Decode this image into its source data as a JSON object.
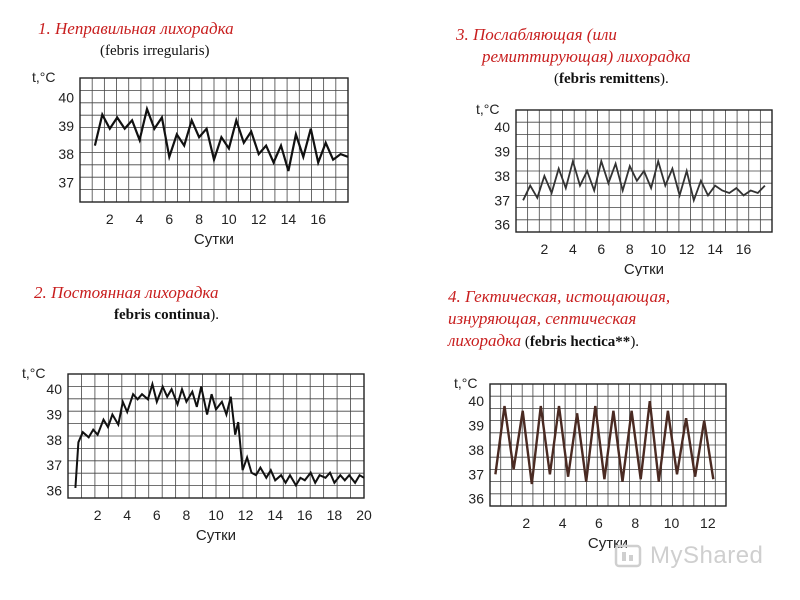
{
  "captions": {
    "p1": {
      "title": "1.  Неправильная  лихорадка",
      "latin": "(febris irregularis)"
    },
    "p2": {
      "title": "2. Постоянная лихорадка",
      "latin": "febris continua",
      "latin_suffix": ")."
    },
    "p3": {
      "title_line1": "3. Послабляющая (или",
      "title_line2": "ремиттирующая) лихорадка",
      "latin_prefix": "(",
      "latin": "febris remittens",
      "latin_suffix": ")."
    },
    "p4": {
      "title_line1": "4. Гектическая, истощающая,",
      "title_line2": "изнуряющая, септическая",
      "title_line3": "лихорадка",
      "latin_prefix": " (",
      "latin": "febris hectica**",
      "latin_suffix": ")."
    }
  },
  "watermark": {
    "text": "MyShared"
  },
  "colors": {
    "title": "#c81e1e",
    "curve_dark": "#111111",
    "curve_brown": "#4a2a22",
    "grid": "#444444"
  },
  "chart_data": [
    {
      "id": "p1",
      "type": "line",
      "ylabel": "t,°C",
      "xlabel": "Сутки",
      "ylim": [
        36.3,
        40.7
      ],
      "xlim": [
        0,
        18
      ],
      "y_ticks": [
        "40",
        "39",
        "38",
        "37"
      ],
      "x_ticks": [
        "2",
        "4",
        "6",
        "8",
        "10",
        "12",
        "14",
        "16"
      ],
      "series": [
        {
          "x": [
            1,
            1.5,
            2,
            2.5,
            3,
            3.5,
            4,
            4.5,
            5,
            5.5,
            6,
            6.5,
            7,
            7.5,
            8,
            8.5,
            9,
            9.5,
            10,
            10.5,
            11,
            11.5,
            12,
            12.5,
            13,
            13.5,
            14,
            14.5,
            15,
            15.5,
            16,
            16.5,
            17,
            17.5,
            18
          ],
          "values": [
            38.3,
            39.4,
            38.9,
            39.3,
            38.9,
            39.2,
            38.5,
            39.6,
            38.9,
            39.3,
            37.9,
            38.7,
            38.3,
            39.2,
            38.6,
            38.9,
            37.8,
            38.6,
            38.2,
            39.2,
            38.4,
            38.8,
            38.0,
            38.3,
            37.7,
            38.3,
            37.4,
            38.7,
            37.9,
            38.9,
            37.7,
            38.4,
            37.8,
            38.0,
            37.9
          ]
        }
      ]
    },
    {
      "id": "p2",
      "type": "line",
      "ylabel": "t,°C",
      "xlabel": "Сутки",
      "ylim": [
        35.7,
        40.6
      ],
      "xlim": [
        0,
        20
      ],
      "y_ticks": [
        "40",
        "39",
        "38",
        "37",
        "36"
      ],
      "x_ticks": [
        "2",
        "4",
        "6",
        "8",
        "10",
        "12",
        "14",
        "16",
        "18",
        "20"
      ],
      "series": [
        {
          "x": [
            0.5,
            0.7,
            1,
            1.4,
            1.7,
            2,
            2.4,
            2.7,
            3,
            3.4,
            3.7,
            4,
            4.4,
            4.7,
            5,
            5.4,
            5.7,
            6,
            6.4,
            6.7,
            7,
            7.4,
            7.7,
            8,
            8.4,
            8.7,
            9,
            9.4,
            9.7,
            10,
            10.4,
            10.7,
            11,
            11.3,
            11.5,
            11.8,
            12.1,
            12.4,
            12.7,
            13,
            13.4,
            13.7,
            14,
            14.4,
            14.7,
            15,
            15.4,
            15.7,
            16,
            16.4,
            16.7,
            17,
            17.4,
            17.7,
            18,
            18.4,
            18.7,
            19,
            19.4,
            19.7,
            20
          ],
          "values": [
            36.1,
            37.9,
            38.3,
            38.1,
            38.4,
            38.2,
            38.8,
            38.5,
            39.0,
            38.6,
            39.5,
            39.1,
            39.8,
            39.6,
            39.8,
            39.6,
            40.2,
            39.5,
            40.1,
            39.7,
            40.0,
            39.4,
            40.0,
            39.5,
            39.9,
            39.3,
            40.1,
            39.0,
            39.8,
            39.2,
            39.5,
            39.0,
            39.7,
            38.2,
            38.7,
            36.8,
            37.3,
            36.7,
            36.6,
            36.9,
            36.5,
            36.8,
            36.4,
            36.6,
            36.3,
            36.6,
            36.2,
            36.5,
            36.4,
            36.7,
            36.3,
            36.6,
            36.5,
            36.7,
            36.3,
            36.6,
            36.4,
            36.6,
            36.3,
            36.6,
            36.5
          ]
        }
      ]
    },
    {
      "id": "p3",
      "type": "line",
      "ylabel": "t,°C",
      "xlabel": "Сутки",
      "ylim": [
        35.7,
        40.7
      ],
      "xlim": [
        0,
        18
      ],
      "y_ticks": [
        "40",
        "39",
        "38",
        "37",
        "36"
      ],
      "x_ticks": [
        "2",
        "4",
        "6",
        "8",
        "10",
        "12",
        "14",
        "16"
      ],
      "series": [
        {
          "x": [
            0.5,
            1,
            1.5,
            2,
            2.5,
            3,
            3.5,
            4,
            4.5,
            5,
            5.5,
            6,
            6.5,
            7,
            7.5,
            8,
            8.5,
            9,
            9.5,
            10,
            10.5,
            11,
            11.5,
            12,
            12.5,
            13,
            13.5,
            14,
            14.5,
            15,
            15.5,
            16,
            16.5,
            17,
            17.5
          ],
          "values": [
            37.0,
            37.6,
            37.1,
            38.0,
            37.3,
            38.3,
            37.5,
            38.6,
            37.6,
            38.2,
            37.4,
            38.6,
            37.7,
            38.5,
            37.4,
            38.4,
            37.8,
            38.2,
            37.5,
            38.6,
            37.6,
            38.3,
            37.2,
            38.2,
            37.0,
            37.8,
            37.2,
            37.6,
            37.4,
            37.3,
            37.5,
            37.2,
            37.4,
            37.3,
            37.6
          ]
        }
      ]
    },
    {
      "id": "p4",
      "type": "line",
      "ylabel": "t,°C",
      "xlabel": "Сутки",
      "ylim": [
        35.7,
        40.7
      ],
      "xlim": [
        0,
        13
      ],
      "y_ticks": [
        "40",
        "39",
        "38",
        "37",
        "36"
      ],
      "x_ticks": [
        "2",
        "4",
        "6",
        "8",
        "10",
        "12"
      ],
      "series": [
        {
          "x": [
            0.3,
            0.8,
            1.3,
            1.8,
            2.3,
            2.8,
            3.3,
            3.8,
            4.3,
            4.8,
            5.3,
            5.8,
            6.3,
            6.8,
            7.3,
            7.8,
            8.3,
            8.8,
            9.3,
            9.8,
            10.3,
            10.8,
            11.3,
            11.8,
            12.3
          ],
          "values": [
            37.0,
            39.8,
            37.2,
            39.6,
            36.6,
            39.8,
            37.0,
            39.8,
            36.9,
            39.5,
            36.7,
            39.8,
            36.8,
            39.6,
            36.7,
            39.6,
            36.8,
            40.0,
            36.7,
            39.6,
            37.0,
            39.3,
            36.9,
            39.2,
            36.8
          ]
        }
      ]
    }
  ]
}
